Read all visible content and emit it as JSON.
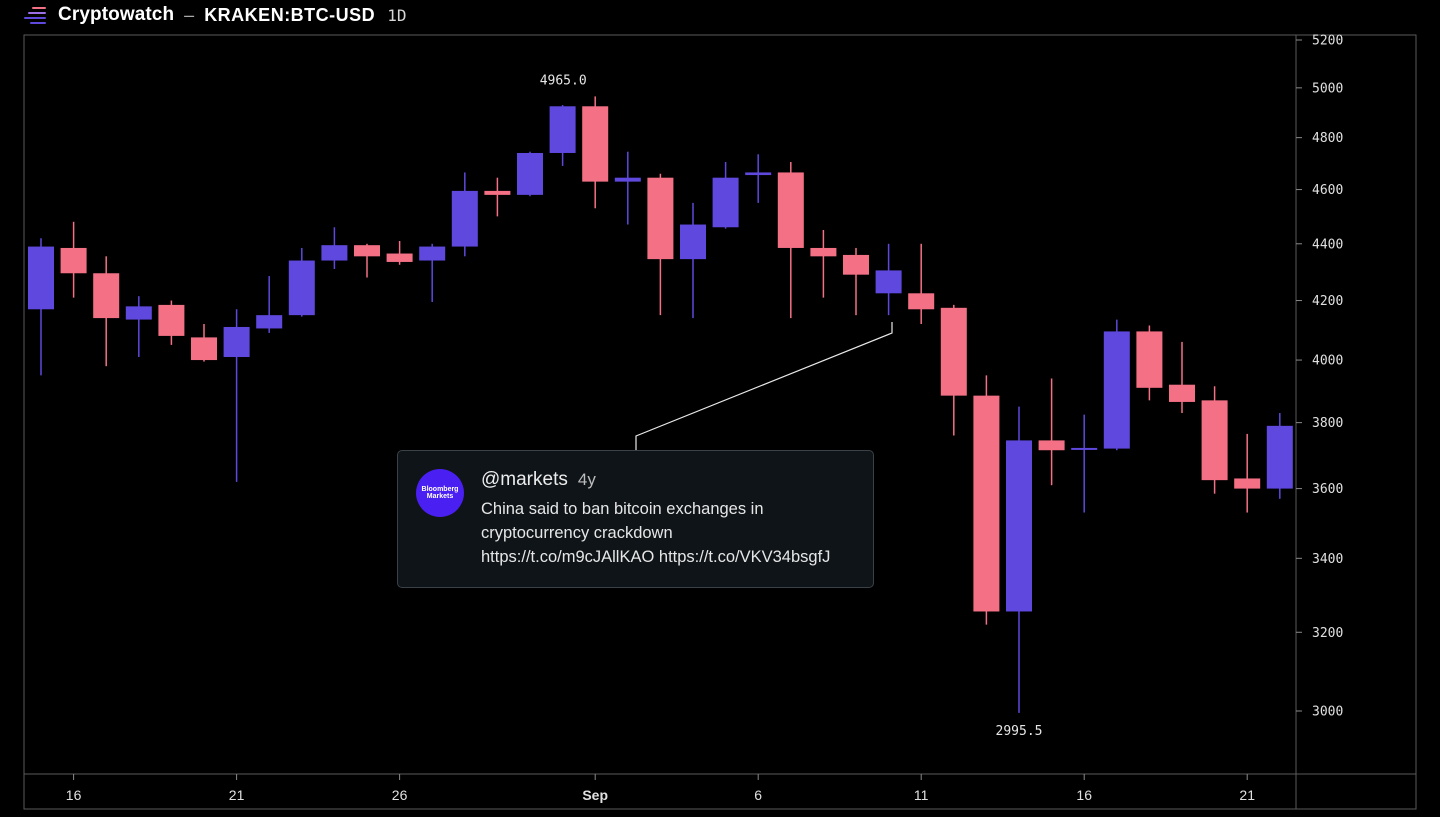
{
  "header": {
    "brand": "Cryptowatch",
    "separator": "–",
    "pair": "KRAKEN:BTC-USD",
    "interval": "1D"
  },
  "colors": {
    "background": "#000000",
    "up": "#5e48dd",
    "down": "#f47085",
    "frame": "#5a5a5a",
    "annotation_line": "#ffffff"
  },
  "tweet": {
    "avatar_lines": [
      "Bloomberg",
      "Markets"
    ],
    "handle": "@markets",
    "age": "4y",
    "text_lines": [
      "China said to ban bitcoin exchanges in",
      "cryptocurrency crackdown",
      "https://t.co/m9cJAllKAO https://t.co/VKV34bsgfJ"
    ]
  },
  "chart_data": {
    "type": "candlestick",
    "scale": "log",
    "ylim": [
      2880,
      5200
    ],
    "y_ticks": [
      3000,
      3200,
      3400,
      3600,
      3800,
      4000,
      4200,
      4400,
      4600,
      4800,
      5000,
      5200
    ],
    "x_labels": [
      {
        "label": "16",
        "index": 1
      },
      {
        "label": "21",
        "index": 6
      },
      {
        "label": "26",
        "index": 11
      },
      {
        "label": "Sep",
        "index": 17,
        "bold": true
      },
      {
        "label": "6",
        "index": 22
      },
      {
        "label": "11",
        "index": 27
      },
      {
        "label": "16",
        "index": 32
      },
      {
        "label": "21",
        "index": 37
      }
    ],
    "high_label": "4965.0",
    "low_label": "2995.5",
    "candles": [
      {
        "o": 4170,
        "h": 4420,
        "l": 3950,
        "c": 4390
      },
      {
        "o": 4385,
        "h": 4480,
        "l": 4210,
        "c": 4295
      },
      {
        "o": 4295,
        "h": 4355,
        "l": 3980,
        "c": 4140
      },
      {
        "o": 4135,
        "h": 4215,
        "l": 4010,
        "c": 4180
      },
      {
        "o": 4185,
        "h": 4200,
        "l": 4050,
        "c": 4080
      },
      {
        "o": 4075,
        "h": 4120,
        "l": 3995,
        "c": 4000
      },
      {
        "o": 4010,
        "h": 4170,
        "l": 3620,
        "c": 4110
      },
      {
        "o": 4105,
        "h": 4285,
        "l": 4090,
        "c": 4150
      },
      {
        "o": 4150,
        "h": 4385,
        "l": 4145,
        "c": 4340
      },
      {
        "o": 4340,
        "h": 4460,
        "l": 4310,
        "c": 4395
      },
      {
        "o": 4395,
        "h": 4400,
        "l": 4280,
        "c": 4355
      },
      {
        "o": 4365,
        "h": 4410,
        "l": 4325,
        "c": 4335
      },
      {
        "o": 4340,
        "h": 4400,
        "l": 4195,
        "c": 4390
      },
      {
        "o": 4390,
        "h": 4665,
        "l": 4355,
        "c": 4595
      },
      {
        "o": 4595,
        "h": 4645,
        "l": 4500,
        "c": 4580
      },
      {
        "o": 4580,
        "h": 4745,
        "l": 4575,
        "c": 4740
      },
      {
        "o": 4740,
        "h": 4930,
        "l": 4690,
        "c": 4925
      },
      {
        "o": 4925,
        "h": 4965,
        "l": 4530,
        "c": 4630
      },
      {
        "o": 4630,
        "h": 4745,
        "l": 4470,
        "c": 4645
      },
      {
        "o": 4645,
        "h": 4660,
        "l": 4150,
        "c": 4345
      },
      {
        "o": 4345,
        "h": 4550,
        "l": 4140,
        "c": 4470
      },
      {
        "o": 4460,
        "h": 4705,
        "l": 4455,
        "c": 4645
      },
      {
        "o": 4655,
        "h": 4735,
        "l": 4550,
        "c": 4665
      },
      {
        "o": 4665,
        "h": 4705,
        "l": 4140,
        "c": 4385
      },
      {
        "o": 4385,
        "h": 4450,
        "l": 4210,
        "c": 4355
      },
      {
        "o": 4360,
        "h": 4385,
        "l": 4150,
        "c": 4290
      },
      {
        "o": 4225,
        "h": 4400,
        "l": 4150,
        "c": 4305
      },
      {
        "o": 4225,
        "h": 4400,
        "l": 4120,
        "c": 4170
      },
      {
        "o": 4175,
        "h": 4185,
        "l": 3760,
        "c": 3885
      },
      {
        "o": 3885,
        "h": 3950,
        "l": 3220,
        "c": 3255
      },
      {
        "o": 3255,
        "h": 3850,
        "l": 2995.5,
        "c": 3745
      },
      {
        "o": 3745,
        "h": 3940,
        "l": 3610,
        "c": 3715
      },
      {
        "o": 3718,
        "h": 3825,
        "l": 3530,
        "c": 3722
      },
      {
        "o": 3720,
        "h": 4135,
        "l": 3715,
        "c": 4095
      },
      {
        "o": 4095,
        "h": 4115,
        "l": 3870,
        "c": 3910
      },
      {
        "o": 3920,
        "h": 4060,
        "l": 3830,
        "c": 3865
      },
      {
        "o": 3870,
        "h": 3915,
        "l": 3585,
        "c": 3625
      },
      {
        "o": 3630,
        "h": 3765,
        "l": 3530,
        "c": 3600
      },
      {
        "o": 3600,
        "h": 3830,
        "l": 3570,
        "c": 3790
      }
    ]
  }
}
